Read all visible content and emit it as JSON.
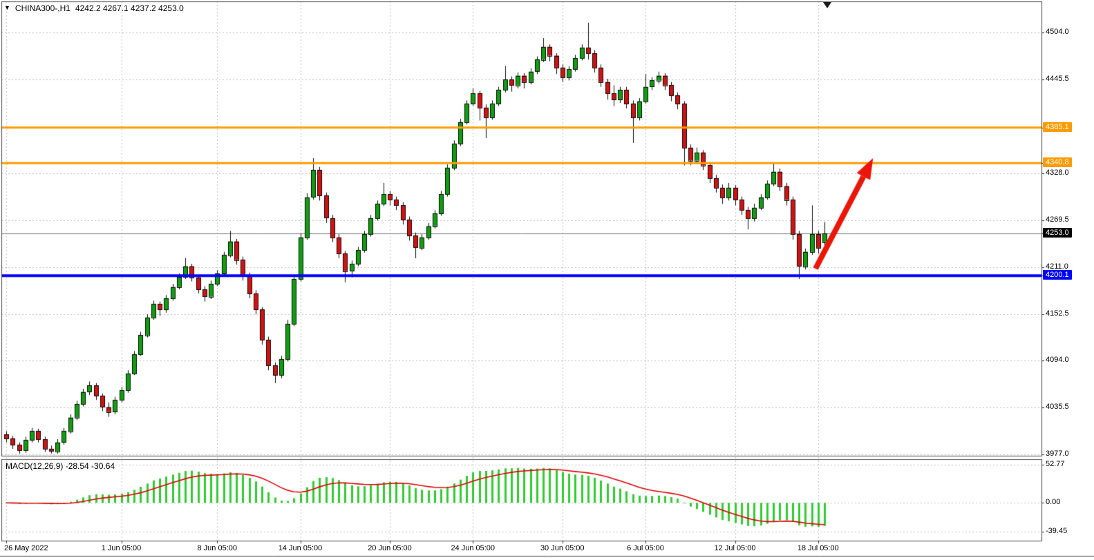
{
  "header": {
    "dropdown_icon": "▼",
    "symbol": "CHINA300-,H1",
    "ohlc": "4242.2 4267.1 4237.2 4253.0"
  },
  "macd_panel": {
    "label": "MACD(12,26,9) -28.54 -30.64"
  },
  "colors": {
    "bg": "#ffffff",
    "grid": "#c2c2c2",
    "border": "#4a4a4a",
    "up": "#0ea00e",
    "down": "#d41111",
    "outline": "#0a0a0a",
    "current_line": "#808080",
    "macd_hist": "#2fce2f",
    "macd_signal": "#e00000",
    "arrow": "#ed1507",
    "orange_level": "#ff9b00",
    "blue_level": "#0000ff",
    "axis_text": "#000000"
  },
  "chart_data": {
    "type": "candlestick",
    "title": "CHINA300-,H1",
    "price_axis": {
      "min": 3975.3,
      "max": 4542.7,
      "labels": [
        {
          "value": 4504.0,
          "text": "4504.0",
          "type": "grid"
        },
        {
          "value": 4445.5,
          "text": "4445.5",
          "type": "grid"
        },
        {
          "value": 4385.1,
          "text": "4385.1",
          "type": "badge",
          "bg": "#ff9b00"
        },
        {
          "value": 4340.8,
          "text": "4340.8",
          "type": "badge",
          "bg": "#ff9b00"
        },
        {
          "value": 4328.0,
          "text": "4328.0",
          "type": "grid"
        },
        {
          "value": 4269.5,
          "text": "4269.5",
          "type": "grid"
        },
        {
          "value": 4253.0,
          "text": "4253.0",
          "type": "badge",
          "bg": "#000000"
        },
        {
          "value": 4211.0,
          "text": "4211.0",
          "type": "grid"
        },
        {
          "value": 4200.1,
          "text": "4200.1",
          "type": "badge",
          "bg": "#0000ff"
        },
        {
          "value": 4152.5,
          "text": "4152.5",
          "type": "grid"
        },
        {
          "value": 4094.0,
          "text": "4094.0",
          "type": "grid"
        },
        {
          "value": 4035.5,
          "text": "4035.5",
          "type": "grid"
        },
        {
          "value": 3977.0,
          "text": "3977.0",
          "type": "grid"
        }
      ]
    },
    "x_ticks": [
      {
        "i": 0,
        "label": "26 May 2022"
      },
      {
        "i": 18,
        "label": "1 Jun 05:00"
      },
      {
        "i": 33,
        "label": "8 Jun 05:00"
      },
      {
        "i": 46,
        "label": "14 Jun 05:00"
      },
      {
        "i": 60,
        "label": "20 Jun 05:00"
      },
      {
        "i": 73,
        "label": "24 Jun 05:00"
      },
      {
        "i": 87,
        "label": "30 Jun 05:00"
      },
      {
        "i": 100,
        "label": "6 Jul 05:00"
      },
      {
        "i": 114,
        "label": "12 Jul 05:00"
      },
      {
        "i": 127,
        "label": "18 Jul 05:00"
      }
    ],
    "hlines": [
      {
        "price": 4385.1,
        "color": "#ff9b00",
        "width": 3
      },
      {
        "price": 4340.8,
        "color": "#ff9b00",
        "width": 3
      },
      {
        "price": 4200.1,
        "color": "#0000ff",
        "width": 4
      }
    ],
    "current_price": {
      "value": 4253.0,
      "text": "4253.0"
    },
    "candles": [
      [
        4002,
        4006,
        3992,
        3997
      ],
      [
        3997,
        4000,
        3984,
        3989
      ],
      [
        3989,
        3992,
        3978,
        3982
      ],
      [
        3982,
        3999,
        3979,
        3995
      ],
      [
        3995,
        4010,
        3992,
        4006
      ],
      [
        4006,
        4009,
        3992,
        3996
      ],
      [
        3996,
        3999,
        3980,
        3984
      ],
      [
        3984,
        3988,
        3978,
        3981
      ],
      [
        3981,
        3996,
        3978,
        3992
      ],
      [
        3992,
        4010,
        3989,
        4006
      ],
      [
        4006,
        4027,
        4003,
        4023
      ],
      [
        4023,
        4044,
        4020,
        4040
      ],
      [
        4040,
        4059,
        4037,
        4055
      ],
      [
        4055,
        4068,
        4051,
        4063
      ],
      [
        4063,
        4066,
        4045,
        4050
      ],
      [
        4050,
        4053,
        4031,
        4036
      ],
      [
        4036,
        4042,
        4024,
        4030
      ],
      [
        4030,
        4049,
        4027,
        4045
      ],
      [
        4045,
        4061,
        4042,
        4057
      ],
      [
        4057,
        4082,
        4054,
        4078
      ],
      [
        4078,
        4106,
        4076,
        4102
      ],
      [
        4102,
        4130,
        4100,
        4126
      ],
      [
        4126,
        4152,
        4123,
        4148
      ],
      [
        4148,
        4169,
        4145,
        4165
      ],
      [
        4165,
        4168,
        4150,
        4158
      ],
      [
        4158,
        4176,
        4154,
        4172
      ],
      [
        4172,
        4190,
        4169,
        4186
      ],
      [
        4186,
        4203,
        4183,
        4199
      ],
      [
        4199,
        4222,
        4196,
        4212
      ],
      [
        4212,
        4215,
        4193,
        4198
      ],
      [
        4198,
        4201,
        4178,
        4183
      ],
      [
        4183,
        4187,
        4168,
        4174
      ],
      [
        4174,
        4194,
        4171,
        4190
      ],
      [
        4190,
        4207,
        4187,
        4203
      ],
      [
        4203,
        4230,
        4200,
        4226
      ],
      [
        4226,
        4256,
        4223,
        4243
      ],
      [
        4243,
        4246,
        4214,
        4220
      ],
      [
        4220,
        4224,
        4194,
        4200
      ],
      [
        4200,
        4204,
        4172,
        4178
      ],
      [
        4178,
        4182,
        4152,
        4158
      ],
      [
        4158,
        4161,
        4114,
        4120
      ],
      [
        4120,
        4124,
        4082,
        4088
      ],
      [
        4088,
        4092,
        4066,
        4076
      ],
      [
        4076,
        4100,
        4072,
        4096
      ],
      [
        4096,
        4145,
        4093,
        4140
      ],
      [
        4140,
        4201,
        4137,
        4196
      ],
      [
        4196,
        4253,
        4193,
        4248
      ],
      [
        4248,
        4303,
        4245,
        4298
      ],
      [
        4298,
        4347,
        4295,
        4332
      ],
      [
        4332,
        4336,
        4294,
        4300
      ],
      [
        4300,
        4304,
        4266,
        4272
      ],
      [
        4272,
        4276,
        4242,
        4248
      ],
      [
        4248,
        4252,
        4222,
        4228
      ],
      [
        4228,
        4231,
        4192,
        4206
      ],
      [
        4206,
        4219,
        4198,
        4215
      ],
      [
        4215,
        4236,
        4212,
        4232
      ],
      [
        4232,
        4256,
        4229,
        4252
      ],
      [
        4252,
        4276,
        4249,
        4272
      ],
      [
        4272,
        4294,
        4269,
        4290
      ],
      [
        4290,
        4316,
        4287,
        4302
      ],
      [
        4302,
        4306,
        4288,
        4295
      ],
      [
        4295,
        4299,
        4282,
        4288
      ],
      [
        4288,
        4292,
        4264,
        4270
      ],
      [
        4270,
        4274,
        4244,
        4250
      ],
      [
        4250,
        4254,
        4222,
        4235
      ],
      [
        4235,
        4252,
        4232,
        4248
      ],
      [
        4248,
        4266,
        4245,
        4262
      ],
      [
        4262,
        4282,
        4259,
        4278
      ],
      [
        4278,
        4306,
        4275,
        4302
      ],
      [
        4302,
        4339,
        4299,
        4335
      ],
      [
        4335,
        4369,
        4332,
        4365
      ],
      [
        4365,
        4396,
        4362,
        4392
      ],
      [
        4392,
        4419,
        4389,
        4415
      ],
      [
        4415,
        4434,
        4412,
        4428
      ],
      [
        4428,
        4431,
        4394,
        4410
      ],
      [
        4410,
        4414,
        4372,
        4398
      ],
      [
        4398,
        4419,
        4395,
        4415
      ],
      [
        4415,
        4436,
        4412,
        4432
      ],
      [
        4432,
        4462,
        4429,
        4445
      ],
      [
        4445,
        4449,
        4430,
        4438
      ],
      [
        4438,
        4454,
        4434,
        4450
      ],
      [
        4450,
        4453,
        4434,
        4442
      ],
      [
        4442,
        4459,
        4439,
        4455
      ],
      [
        4455,
        4474,
        4452,
        4470
      ],
      [
        4470,
        4497,
        4467,
        4486
      ],
      [
        4486,
        4489,
        4468,
        4475
      ],
      [
        4475,
        4478,
        4452,
        4460
      ],
      [
        4460,
        4464,
        4442,
        4448
      ],
      [
        4448,
        4462,
        4444,
        4458
      ],
      [
        4458,
        4476,
        4455,
        4472
      ],
      [
        4472,
        4489,
        4469,
        4485
      ],
      [
        4485,
        4516,
        4470,
        4478
      ],
      [
        4478,
        4482,
        4454,
        4460
      ],
      [
        4460,
        4464,
        4436,
        4442
      ],
      [
        4442,
        4446,
        4420,
        4428
      ],
      [
        4428,
        4438,
        4412,
        4420
      ],
      [
        4420,
        4436,
        4416,
        4432
      ],
      [
        4432,
        4436,
        4409,
        4415
      ],
      [
        4415,
        4419,
        4366,
        4398
      ],
      [
        4398,
        4422,
        4394,
        4418
      ],
      [
        4418,
        4452,
        4415,
        4436
      ],
      [
        4436,
        4448,
        4432,
        4444
      ],
      [
        4444,
        4455,
        4440,
        4450
      ],
      [
        4450,
        4453,
        4432,
        4438
      ],
      [
        4438,
        4442,
        4418,
        4425
      ],
      [
        4425,
        4429,
        4408,
        4415
      ],
      [
        4415,
        4418,
        4338,
        4360
      ],
      [
        4360,
        4364,
        4338,
        4344
      ],
      [
        4344,
        4360,
        4340,
        4354
      ],
      [
        4354,
        4357,
        4332,
        4338
      ],
      [
        4338,
        4342,
        4316,
        4322
      ],
      [
        4322,
        4326,
        4304,
        4310
      ],
      [
        4310,
        4314,
        4290,
        4298
      ],
      [
        4298,
        4316,
        4294,
        4310
      ],
      [
        4310,
        4313,
        4288,
        4295
      ],
      [
        4295,
        4299,
        4276,
        4282
      ],
      [
        4282,
        4286,
        4258,
        4272
      ],
      [
        4272,
        4290,
        4268,
        4285
      ],
      [
        4285,
        4302,
        4282,
        4298
      ],
      [
        4298,
        4319,
        4295,
        4315
      ],
      [
        4315,
        4340,
        4312,
        4330
      ],
      [
        4330,
        4334,
        4306,
        4312
      ],
      [
        4312,
        4316,
        4288,
        4295
      ],
      [
        4295,
        4299,
        4245,
        4252
      ],
      [
        4252,
        4256,
        4196,
        4212
      ],
      [
        4212,
        4234,
        4208,
        4230
      ],
      [
        4230,
        4288,
        4226,
        4252
      ],
      [
        4252,
        4256,
        4228,
        4235
      ],
      [
        4242.2,
        4267.1,
        4237.2,
        4253.0
      ]
    ],
    "macd": {
      "fast": 12,
      "slow": 26,
      "signal": 9,
      "last_values_text": "-28.54 -30.64",
      "range": {
        "min": -52,
        "max": 60
      },
      "axis_labels": [
        {
          "value": 52.77,
          "text": "52.77"
        },
        {
          "value": 0,
          "text": "0.00"
        },
        {
          "value": -39.45,
          "text": "-39.45"
        }
      ]
    },
    "annotations": {
      "trend_arrow": {
        "from_index": 126.6,
        "from_price": 4209,
        "to_index": 135.6,
        "to_price": 4347
      }
    }
  }
}
